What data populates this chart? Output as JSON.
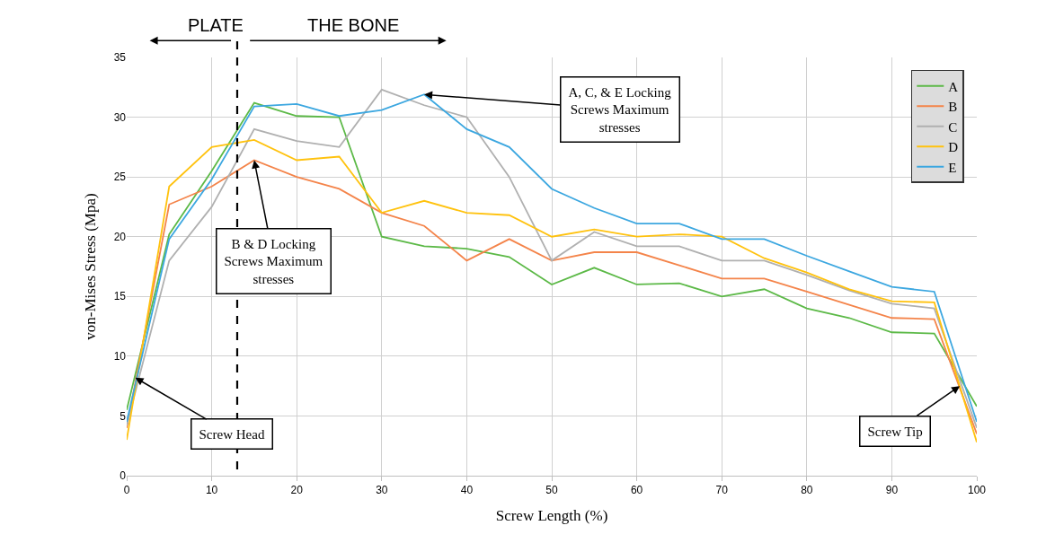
{
  "chart_data": {
    "type": "line",
    "xlabel": "Screw Length (%)",
    "ylabel": "von-Mises Stress (Mpa)",
    "x": [
      0,
      5,
      10,
      15,
      20,
      25,
      30,
      35,
      40,
      45,
      50,
      55,
      60,
      65,
      70,
      75,
      80,
      85,
      90,
      95,
      100
    ],
    "series": [
      {
        "name": "A",
        "color": "#5cb947",
        "values": [
          5.5,
          20.2,
          25.5,
          31.2,
          30.1,
          30.0,
          20.0,
          19.2,
          19.0,
          18.3,
          16.0,
          17.4,
          16.0,
          16.1,
          15.0,
          15.6,
          14.0,
          13.2,
          12.0,
          11.9,
          5.8
        ]
      },
      {
        "name": "B",
        "color": "#f4844a",
        "values": [
          4.0,
          22.7,
          24.2,
          26.4,
          25.0,
          24.0,
          22.0,
          20.9,
          18.0,
          19.8,
          18.0,
          18.7,
          18.7,
          17.6,
          16.5,
          16.5,
          15.4,
          14.3,
          13.2,
          13.1,
          3.5
        ]
      },
      {
        "name": "C",
        "color": "#b0b0b0",
        "values": [
          4.2,
          18.0,
          22.5,
          29.0,
          28.0,
          27.5,
          32.3,
          31.0,
          30.0,
          25.0,
          18.0,
          20.4,
          19.2,
          19.2,
          18.0,
          18.0,
          16.8,
          15.5,
          14.4,
          14.0,
          4.0
        ]
      },
      {
        "name": "D",
        "color": "#ffc20e",
        "values": [
          3.0,
          24.2,
          27.5,
          28.1,
          26.4,
          26.7,
          22.0,
          23.0,
          22.0,
          21.8,
          20.0,
          20.6,
          20.0,
          20.2,
          20.0,
          18.2,
          17.0,
          15.6,
          14.6,
          14.5,
          2.8
        ]
      },
      {
        "name": "E",
        "color": "#3ca7e0",
        "values": [
          4.5,
          19.8,
          24.8,
          30.9,
          31.1,
          30.1,
          30.6,
          31.9,
          29.0,
          27.5,
          24.0,
          22.4,
          21.1,
          21.1,
          19.8,
          19.8,
          18.4,
          17.1,
          15.8,
          15.4,
          4.5
        ]
      }
    ],
    "xlim": [
      0,
      100
    ],
    "xticks": [
      0,
      10,
      20,
      30,
      40,
      50,
      60,
      70,
      80,
      90,
      100
    ],
    "ylim": [
      0,
      35
    ],
    "yticks": [
      0,
      5,
      10,
      15,
      20,
      25,
      30,
      35
    ],
    "grid": true,
    "legend": "top right",
    "marker": "none",
    "line_style": "solid",
    "ref_lines": [
      {
        "axis": "x",
        "value": 13,
        "label": null,
        "color": "#000000",
        "line_style": "dashed"
      }
    ],
    "annotations": [
      "PLATE",
      "THE BONE",
      {
        "text": "B & D Locking\nScrews Maximum\nstresses",
        "x": 15,
        "y": 26.4
      },
      {
        "text": "A, C, & E Locking\nScrews Maximum\nstresses",
        "x": 35,
        "y": 31.9
      },
      {
        "text": "Screw Head",
        "x": 1,
        "y": 8.2
      },
      {
        "text": "Screw Tip",
        "x": 98,
        "y": 7.5
      }
    ]
  }
}
